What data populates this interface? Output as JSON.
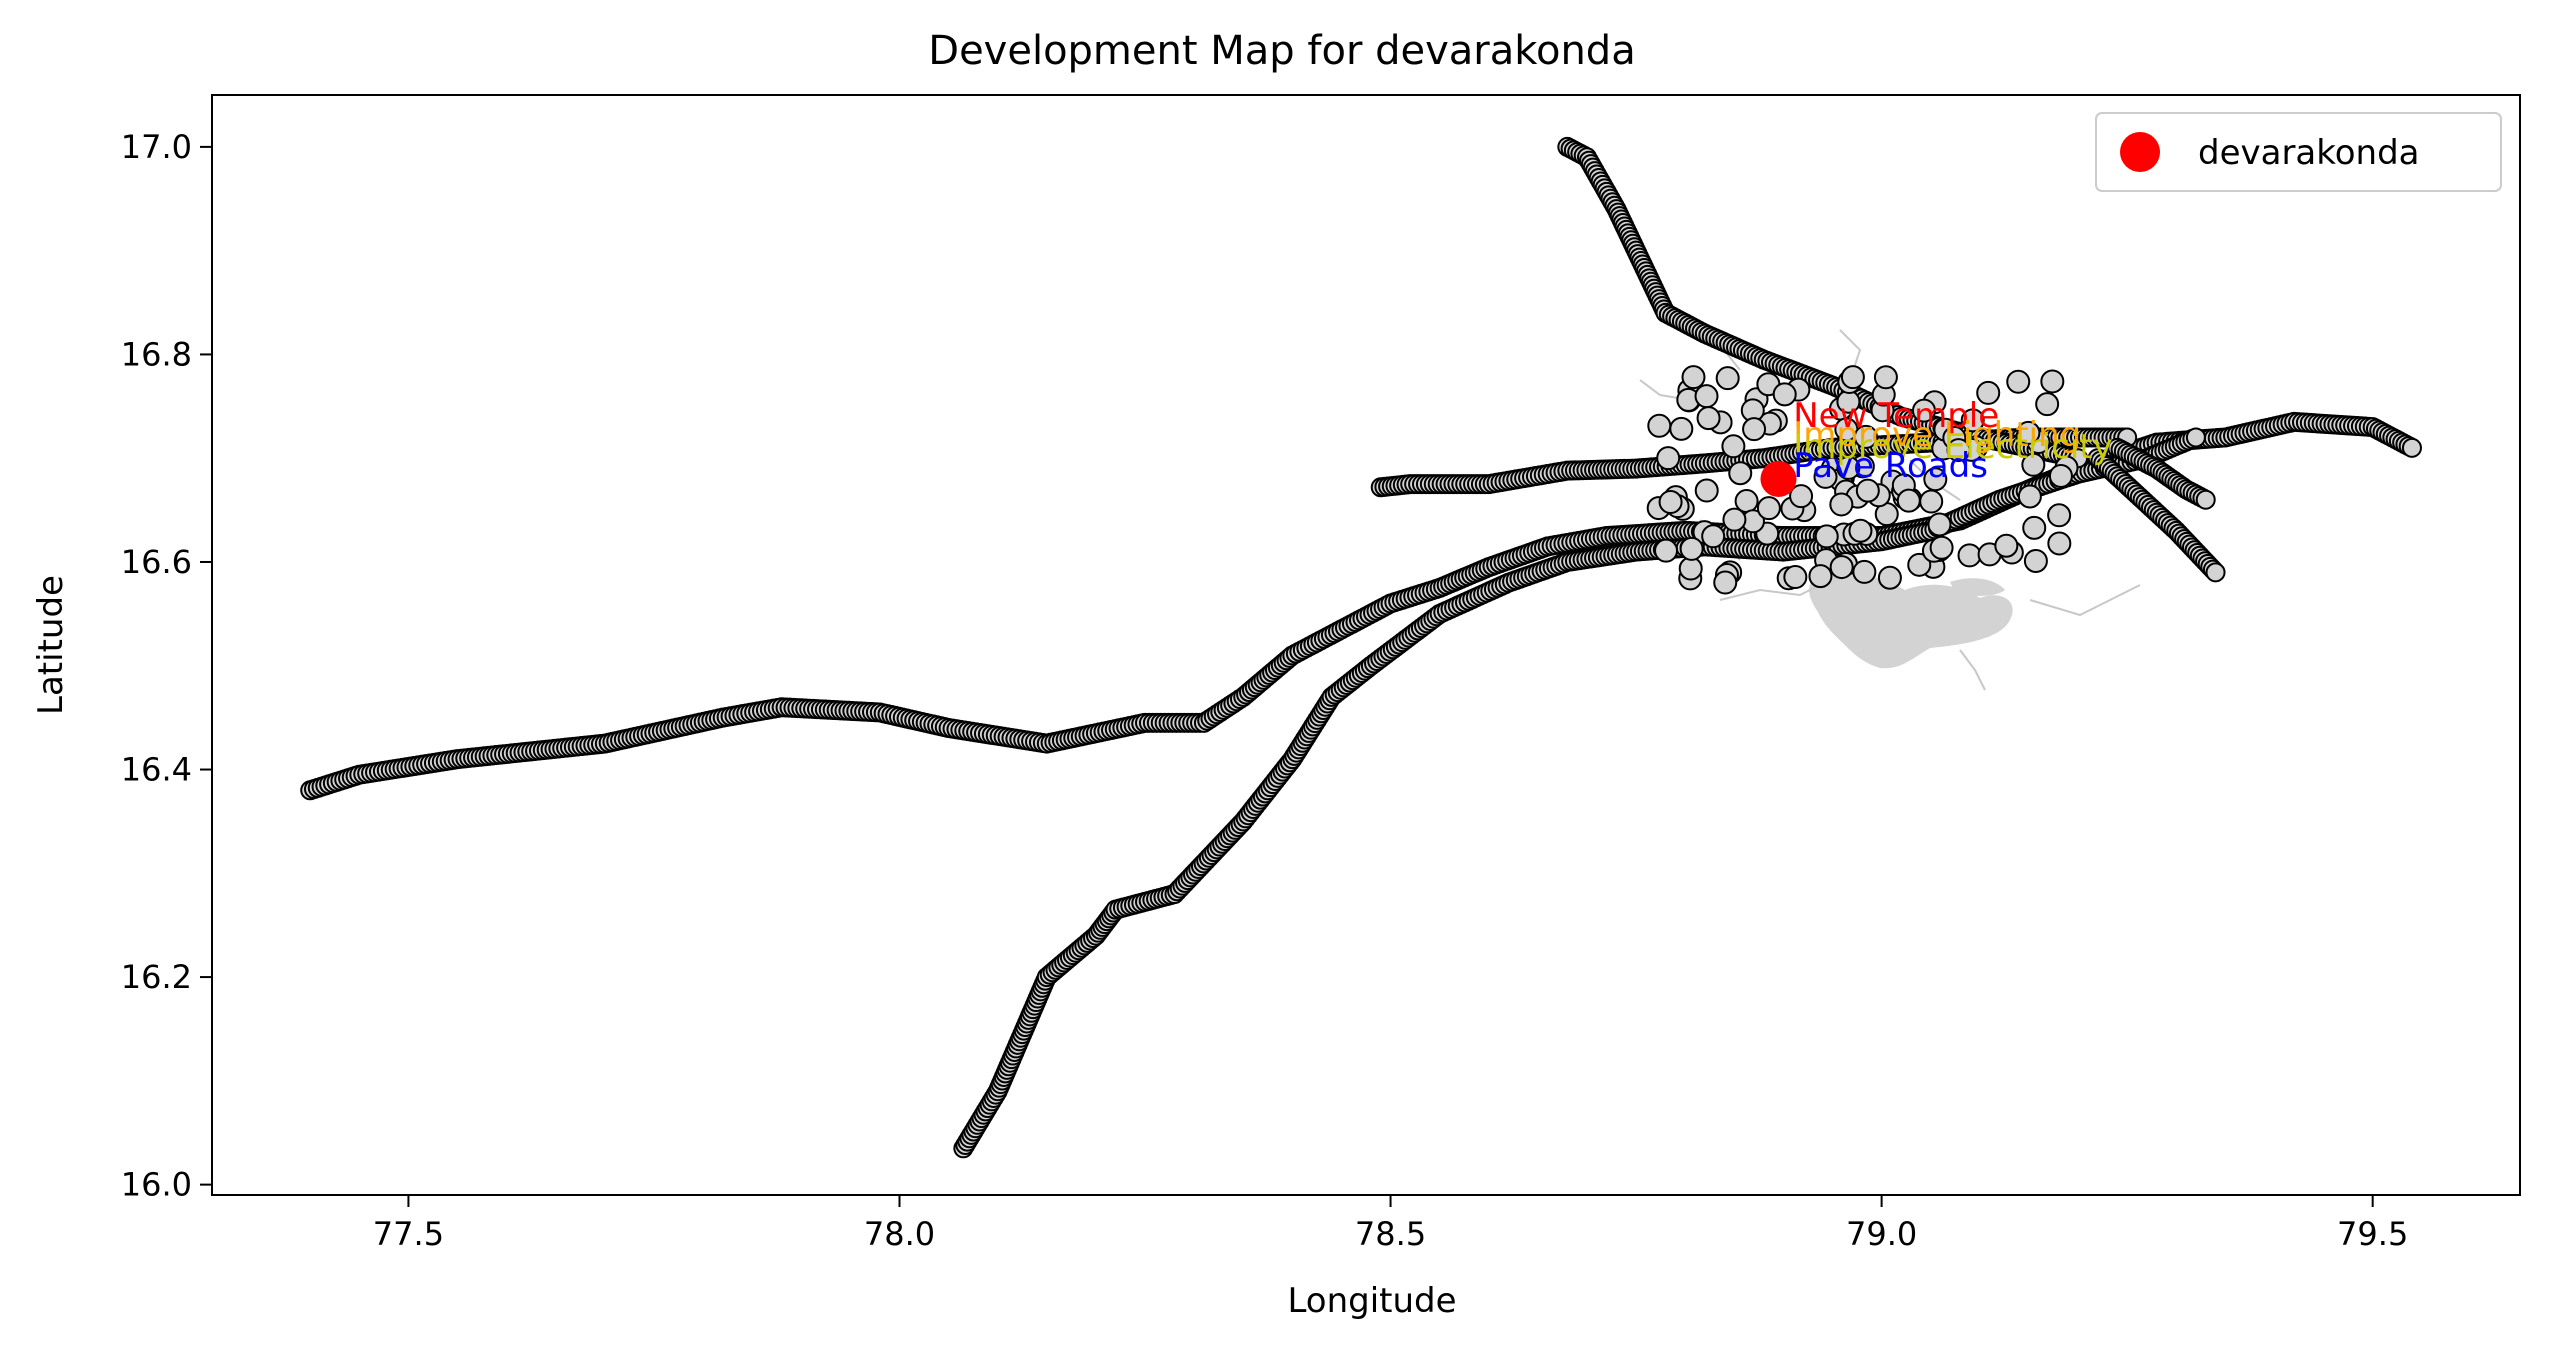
{
  "title": "Development Map for devarakonda",
  "xlabel": "Longitude",
  "ylabel": "Latitude",
  "axes": {
    "xlim": [
      77.3,
      79.65
    ],
    "ylim": [
      15.99,
      17.05
    ],
    "xticks": [
      77.5,
      78.0,
      78.5,
      79.0,
      79.5
    ],
    "xtick_labels": [
      "77.5",
      "78.0",
      "78.5",
      "79.0",
      "79.5"
    ],
    "yticks": [
      16.0,
      16.2,
      16.4,
      16.6,
      16.8,
      17.0
    ],
    "ytick_labels": [
      "16.0",
      "16.2",
      "16.4",
      "16.6",
      "16.8",
      "17.0"
    ],
    "grid": false
  },
  "legend": {
    "placement": "top-right",
    "entries": [
      {
        "label": "devarakonda",
        "color": "#ff0000",
        "marker": "circle"
      }
    ]
  },
  "colors": {
    "road_marker_fill": "#d3d3d3",
    "road_marker_edge": "#000000",
    "water_fill": "#d3d3d3",
    "town_marker": "#ff0000"
  },
  "town": {
    "name": "devarakonda",
    "lon": 78.895,
    "lat": 16.68
  },
  "annotations": [
    {
      "text": "New Temple",
      "lon": 78.91,
      "lat": 16.73,
      "color": "#ff0000"
    },
    {
      "text": "Improve Lighting",
      "lon": 78.91,
      "lat": 16.712,
      "color": "#ffa500"
    },
    {
      "text": "Improve Electricity",
      "lon": 78.91,
      "lat": 16.7,
      "color": "#cccc00"
    },
    {
      "text": "Pave Roads",
      "lon": 78.91,
      "lat": 16.682,
      "color": "#0000ff"
    }
  ],
  "chart_data": {
    "type": "scatter",
    "title": "Development Map for devarakonda",
    "xlabel": "Longitude",
    "ylabel": "Latitude",
    "xlim": [
      77.3,
      79.65
    ],
    "ylim": [
      15.99,
      17.05
    ],
    "series": [
      {
        "name": "devarakonda",
        "points": [
          [
            78.895,
            16.68
          ]
        ]
      }
    ],
    "roads": [
      {
        "points": [
          [
            77.4,
            16.38
          ],
          [
            77.45,
            16.395
          ],
          [
            77.55,
            16.41
          ],
          [
            77.7,
            16.425
          ],
          [
            77.82,
            16.45
          ],
          [
            77.88,
            16.46
          ],
          [
            77.98,
            16.455
          ],
          [
            78.05,
            16.44
          ],
          [
            78.15,
            16.425
          ],
          [
            78.25,
            16.445
          ],
          [
            78.31,
            16.445
          ],
          [
            78.35,
            16.47
          ],
          [
            78.4,
            16.51
          ],
          [
            78.45,
            16.535
          ],
          [
            78.5,
            16.56
          ],
          [
            78.55,
            16.575
          ],
          [
            78.6,
            16.595
          ],
          [
            78.66,
            16.615
          ],
          [
            78.72,
            16.625
          ],
          [
            78.8,
            16.63
          ],
          [
            78.9,
            16.625
          ],
          [
            79.0,
            16.625
          ],
          [
            79.08,
            16.64
          ],
          [
            79.15,
            16.67
          ],
          [
            79.2,
            16.69
          ],
          [
            79.28,
            16.715
          ],
          [
            79.35,
            16.72
          ],
          [
            79.42,
            16.735
          ],
          [
            79.5,
            16.73
          ],
          [
            79.54,
            16.71
          ]
        ]
      },
      {
        "points": [
          [
            78.065,
            16.035
          ],
          [
            78.1,
            16.09
          ],
          [
            78.15,
            16.2
          ],
          [
            78.2,
            16.24
          ],
          [
            78.22,
            16.265
          ],
          [
            78.28,
            16.28
          ],
          [
            78.35,
            16.35
          ],
          [
            78.4,
            16.41
          ],
          [
            78.44,
            16.47
          ],
          [
            78.48,
            16.5
          ],
          [
            78.55,
            16.55
          ],
          [
            78.62,
            16.58
          ],
          [
            78.68,
            16.6
          ],
          [
            78.75,
            16.61
          ],
          [
            78.82,
            16.615
          ],
          [
            78.9,
            16.61
          ],
          [
            79.0,
            16.62
          ],
          [
            79.05,
            16.63
          ],
          [
            79.12,
            16.66
          ],
          [
            79.2,
            16.685
          ],
          [
            79.27,
            16.7
          ],
          [
            79.32,
            16.72
          ]
        ]
      },
      {
        "points": [
          [
            78.49,
            16.672
          ],
          [
            78.52,
            16.675
          ],
          [
            78.6,
            16.675
          ],
          [
            78.68,
            16.688
          ],
          [
            78.75,
            16.69
          ],
          [
            78.82,
            16.695
          ],
          [
            78.88,
            16.7
          ],
          [
            78.95,
            16.71
          ],
          [
            79.05,
            16.715
          ],
          [
            79.15,
            16.72
          ],
          [
            79.25,
            16.72
          ]
        ]
      },
      {
        "points": [
          [
            78.68,
            17.0
          ],
          [
            78.7,
            16.99
          ],
          [
            78.73,
            16.94
          ],
          [
            78.76,
            16.88
          ],
          [
            78.78,
            16.84
          ],
          [
            78.82,
            16.82
          ],
          [
            78.88,
            16.795
          ],
          [
            78.95,
            16.77
          ],
          [
            79.02,
            16.74
          ],
          [
            79.1,
            16.72
          ],
          [
            79.2,
            16.7
          ]
        ]
      },
      {
        "points": [
          [
            79.22,
            16.7
          ],
          [
            79.26,
            16.665
          ],
          [
            79.3,
            16.63
          ],
          [
            79.34,
            16.59
          ]
        ]
      },
      {
        "points": [
          [
            79.24,
            16.71
          ],
          [
            79.28,
            16.69
          ],
          [
            79.31,
            16.67
          ],
          [
            79.33,
            16.66
          ]
        ]
      }
    ]
  }
}
